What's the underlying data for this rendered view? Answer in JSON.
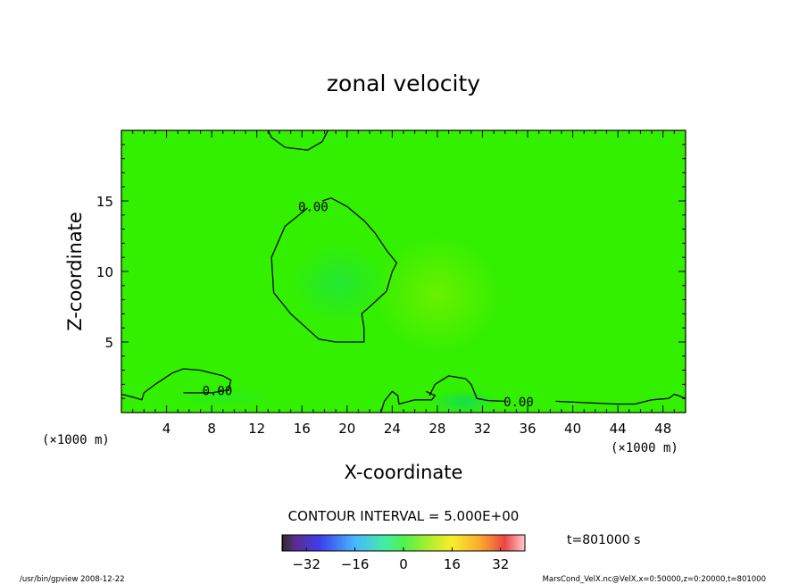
{
  "chart_data": {
    "type": "heatmap",
    "title": "zonal velocity",
    "xlabel": "X-coordinate",
    "ylabel": "Z-coordinate",
    "x_unit_left": "(×1000 m)",
    "x_unit_right": "(×1000 m)",
    "xlim": [
      0,
      50
    ],
    "ylim": [
      0,
      20
    ],
    "x_ticks": [
      4,
      8,
      12,
      16,
      20,
      24,
      28,
      32,
      36,
      40,
      44,
      48
    ],
    "y_ticks": [
      5,
      10,
      15
    ],
    "grid": false,
    "contour_interval_text": "CONTOUR INTERVAL = 5.000E+00",
    "contour_labels": [
      {
        "text": "0.00",
        "x": 17.0,
        "z": 14.6
      },
      {
        "text": "0.00",
        "x": 8.5,
        "z": 1.55
      },
      {
        "text": "0.00",
        "x": 35.2,
        "z": 0.75
      }
    ],
    "contours": [
      {
        "level": 0,
        "points": [
          [
            13.0,
            20.0
          ],
          [
            13.3,
            19.5
          ],
          [
            14.5,
            18.8
          ],
          [
            16.5,
            18.6
          ],
          [
            17.8,
            19.2
          ],
          [
            18.3,
            20.0
          ]
        ]
      },
      {
        "level": 0,
        "points": [
          [
            16.5,
            14.5
          ],
          [
            14.5,
            13.2
          ],
          [
            13.3,
            11.0
          ],
          [
            13.5,
            8.5
          ],
          [
            15.0,
            7.0
          ],
          [
            17.5,
            5.2
          ],
          [
            19.0,
            5.0
          ],
          [
            21.5,
            5.0
          ],
          [
            21.5,
            6.0
          ],
          [
            21.3,
            7.0
          ],
          [
            22.0,
            7.5
          ],
          [
            23.5,
            8.6
          ],
          [
            24.0,
            10.0
          ],
          [
            24.4,
            10.6
          ],
          [
            23.5,
            11.5
          ],
          [
            22.5,
            12.7
          ],
          [
            21.5,
            13.6
          ],
          [
            20.0,
            14.6
          ],
          [
            18.6,
            15.2
          ],
          [
            17.8,
            15.0
          ]
        ]
      },
      {
        "level": 0,
        "points": [
          [
            0.0,
            1.3
          ],
          [
            1.0,
            1.1
          ],
          [
            1.8,
            0.9
          ],
          [
            2.0,
            1.4
          ],
          [
            3.0,
            2.0
          ],
          [
            4.5,
            2.8
          ],
          [
            5.5,
            3.1
          ],
          [
            7.0,
            3.0
          ],
          [
            9.0,
            2.6
          ],
          [
            9.7,
            2.3
          ],
          [
            9.5,
            1.6
          ],
          [
            8.0,
            1.4
          ],
          [
            6.5,
            1.4
          ],
          [
            5.5,
            1.4
          ]
        ]
      },
      {
        "level": 0,
        "points": [
          [
            23.0,
            0.0
          ],
          [
            23.3,
            0.8
          ],
          [
            24.0,
            1.5
          ],
          [
            24.5,
            1.2
          ],
          [
            24.6,
            0.6
          ],
          [
            26.0,
            0.9
          ],
          [
            27.5,
            0.9
          ],
          [
            27.8,
            1.2
          ],
          [
            27.0,
            1.5
          ]
        ]
      },
      {
        "level": 0,
        "points": [
          [
            27.3,
            1.2
          ],
          [
            27.8,
            2.0
          ],
          [
            29.0,
            2.6
          ],
          [
            30.5,
            2.4
          ],
          [
            31.0,
            2.0
          ],
          [
            31.5,
            1.0
          ],
          [
            32.5,
            0.85
          ],
          [
            34.0,
            0.8
          ]
        ]
      },
      {
        "level": 0,
        "points": [
          [
            38.5,
            0.8
          ],
          [
            41.0,
            0.7
          ],
          [
            44.0,
            0.6
          ],
          [
            45.5,
            0.6
          ],
          [
            47.0,
            0.9
          ],
          [
            48.5,
            1.0
          ],
          [
            49.0,
            1.3
          ],
          [
            50.0,
            1.0
          ]
        ]
      }
    ],
    "colorbar": {
      "ticks": [
        -32,
        -16,
        0,
        16,
        32
      ],
      "tick_labels": [
        "−32",
        "−16",
        "0",
        "16",
        "32"
      ],
      "range": [
        -40,
        40
      ]
    },
    "colors": {
      "field": "#33f000",
      "plot_border": "#000000"
    }
  },
  "annotations": {
    "time": "t=801000 s",
    "footer_left": "/usr/bin/gpview  2008-12-22",
    "footer_right": "MarsCond_VelX.nc@VelX,x=0:50000,z=0:20000,t=801000"
  }
}
